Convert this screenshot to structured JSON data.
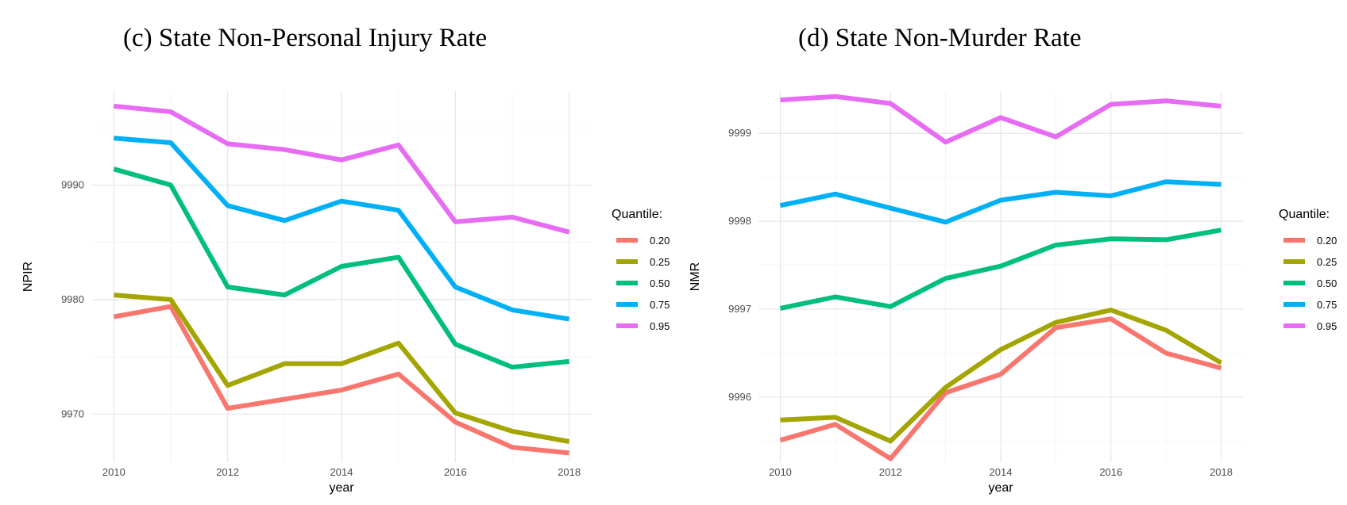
{
  "chart_data": [
    {
      "type": "line",
      "title": "(c) State Non-Personal Injury Rate",
      "xlabel": "year",
      "ylabel": "NPIR",
      "x": [
        2010,
        2011,
        2012,
        2013,
        2014,
        2015,
        2016,
        2017,
        2018
      ],
      "xticks": [
        2010,
        2012,
        2014,
        2016,
        2018
      ],
      "xlim": [
        2010,
        2018
      ],
      "ylim": [
        9965.8,
        9998.2
      ],
      "yticks": [
        9970,
        9980,
        9990
      ],
      "grid": true,
      "legend_title": "Quantile:",
      "legend_position": "right",
      "series": [
        {
          "name": "0.20",
          "color": "#F8766D",
          "values": [
            9978.5,
            9979.4,
            9970.5,
            9971.3,
            9972.1,
            9973.5,
            9969.3,
            9967.1,
            9966.6
          ]
        },
        {
          "name": "0.25",
          "color": "#A3A500",
          "values": [
            9980.4,
            9980.0,
            9972.5,
            9974.4,
            9974.4,
            9976.2,
            9970.1,
            9968.5,
            9967.6
          ]
        },
        {
          "name": "0.50",
          "color": "#00BF7D",
          "values": [
            9991.4,
            9990.0,
            9981.1,
            9980.4,
            9982.9,
            9983.7,
            9976.1,
            9974.1,
            9974.6
          ]
        },
        {
          "name": "0.75",
          "color": "#00B0F6",
          "values": [
            9994.1,
            9993.7,
            9988.2,
            9986.9,
            9988.6,
            9987.8,
            9981.1,
            9979.1,
            9978.3
          ]
        },
        {
          "name": "0.95",
          "color": "#E76BF3",
          "values": [
            9996.9,
            9996.4,
            9993.6,
            9993.1,
            9992.2,
            9993.5,
            9986.8,
            9987.2,
            9985.9
          ]
        }
      ]
    },
    {
      "type": "line",
      "title": "(d)  State Non-Murder Rate",
      "xlabel": "year",
      "ylabel": "NMR",
      "x": [
        2010,
        2011,
        2012,
        2013,
        2014,
        2015,
        2016,
        2017,
        2018
      ],
      "xticks": [
        2010,
        2012,
        2014,
        2016,
        2018
      ],
      "xlim": [
        2010,
        2018
      ],
      "ylim": [
        9995.26,
        9999.48
      ],
      "yticks": [
        9996,
        9997,
        9998,
        9999
      ],
      "grid": true,
      "legend_title": "Quantile:",
      "legend_position": "right",
      "series": [
        {
          "name": "0.20",
          "color": "#F8766D",
          "values": [
            9995.51,
            9995.69,
            9995.3,
            9996.05,
            9996.26,
            9996.79,
            9996.89,
            9996.5,
            9996.33
          ]
        },
        {
          "name": "0.25",
          "color": "#A3A500",
          "values": [
            9995.74,
            9995.77,
            9995.5,
            9996.11,
            9996.54,
            9996.85,
            9996.99,
            9996.76,
            9996.39
          ]
        },
        {
          "name": "0.50",
          "color": "#00BF7D",
          "values": [
            9997.01,
            9997.14,
            9997.03,
            9997.35,
            9997.49,
            9997.73,
            9997.8,
            9997.79,
            9997.9
          ]
        },
        {
          "name": "0.75",
          "color": "#00B0F6",
          "values": [
            9998.18,
            9998.31,
            9998.15,
            9997.99,
            9998.24,
            9998.33,
            9998.29,
            9998.45,
            9998.42
          ]
        },
        {
          "name": "0.95",
          "color": "#E76BF3",
          "values": [
            9999.38,
            9999.42,
            9999.34,
            9998.9,
            9999.18,
            9998.96,
            9999.33,
            9999.37,
            9999.31
          ]
        }
      ]
    }
  ]
}
